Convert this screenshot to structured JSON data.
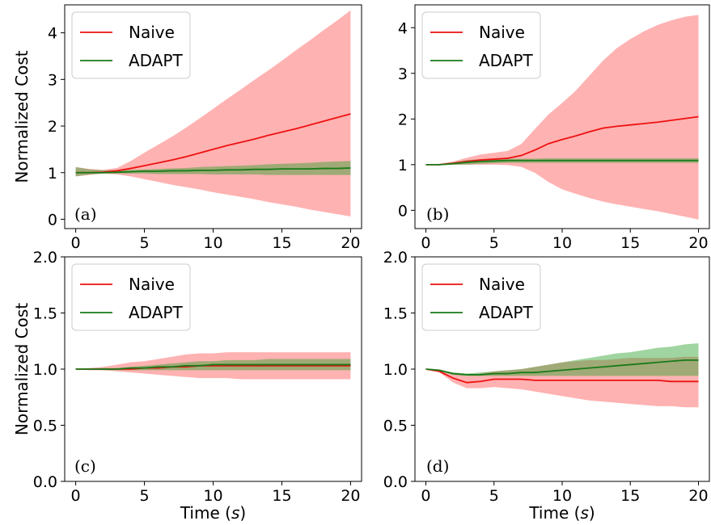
{
  "colors": {
    "naive_line": "#ee1111",
    "naive_band": "#ff6666",
    "adapt_line": "#1a7a1a",
    "adapt_band": "#2ca02c"
  },
  "chart_data": [
    {
      "panel": "(a)",
      "type": "line",
      "xlabel": "",
      "ylabel": "Normalized Cost",
      "xlim": [
        -0.8,
        20.8
      ],
      "ylim": [
        -0.2,
        4.6
      ],
      "xticks": [
        0,
        5,
        10,
        15,
        20
      ],
      "yticks": [
        0,
        1,
        2,
        3,
        4
      ],
      "legend": {
        "position": "top-left",
        "entries": [
          "Naive",
          "ADAPT"
        ]
      },
      "series": [
        {
          "name": "Naive",
          "x": [
            0,
            1,
            2,
            3,
            4,
            5,
            6,
            7,
            8,
            9,
            10,
            11,
            12,
            13,
            14,
            15,
            16,
            17,
            18,
            19,
            20
          ],
          "mean": [
            1.0,
            1.0,
            1.01,
            1.04,
            1.09,
            1.15,
            1.21,
            1.27,
            1.34,
            1.42,
            1.5,
            1.58,
            1.65,
            1.72,
            1.8,
            1.87,
            1.94,
            2.02,
            2.1,
            2.18,
            2.26
          ],
          "upper": [
            1.12,
            1.08,
            1.06,
            1.1,
            1.25,
            1.43,
            1.6,
            1.77,
            1.96,
            2.16,
            2.37,
            2.58,
            2.78,
            2.99,
            3.19,
            3.4,
            3.62,
            3.83,
            4.05,
            4.26,
            4.48
          ],
          "lower": [
            0.92,
            0.95,
            0.98,
            0.96,
            0.92,
            0.86,
            0.8,
            0.74,
            0.69,
            0.64,
            0.58,
            0.53,
            0.48,
            0.43,
            0.37,
            0.32,
            0.27,
            0.21,
            0.16,
            0.11,
            0.06
          ]
        },
        {
          "name": "ADAPT",
          "x": [
            0,
            1,
            2,
            3,
            4,
            5,
            6,
            7,
            8,
            9,
            10,
            11,
            12,
            13,
            14,
            15,
            16,
            17,
            18,
            19,
            20
          ],
          "mean": [
            1.0,
            1.0,
            1.0,
            1.01,
            1.02,
            1.03,
            1.03,
            1.04,
            1.04,
            1.05,
            1.05,
            1.06,
            1.06,
            1.07,
            1.07,
            1.08,
            1.08,
            1.08,
            1.09,
            1.09,
            1.1
          ],
          "upper": [
            1.12,
            1.07,
            1.05,
            1.05,
            1.06,
            1.07,
            1.08,
            1.09,
            1.1,
            1.12,
            1.13,
            1.14,
            1.15,
            1.16,
            1.18,
            1.19,
            1.2,
            1.21,
            1.23,
            1.24,
            1.25
          ],
          "lower": [
            0.92,
            0.96,
            0.98,
            0.98,
            0.98,
            0.98,
            0.97,
            0.97,
            0.97,
            0.97,
            0.96,
            0.96,
            0.96,
            0.96,
            0.95,
            0.95,
            0.95,
            0.95,
            0.95,
            0.95,
            0.95
          ]
        }
      ]
    },
    {
      "panel": "(b)",
      "type": "line",
      "xlabel": "",
      "ylabel": "",
      "xlim": [
        -0.8,
        20.8
      ],
      "ylim": [
        -0.4,
        4.5
      ],
      "xticks": [
        0,
        5,
        10,
        15,
        20
      ],
      "yticks": [
        0,
        1,
        2,
        3,
        4
      ],
      "legend": {
        "position": "top-left",
        "entries": [
          "Naive",
          "ADAPT"
        ]
      },
      "series": [
        {
          "name": "Naive",
          "x": [
            0,
            1,
            2,
            3,
            4,
            5,
            6,
            7,
            8,
            9,
            10,
            11,
            12,
            13,
            14,
            15,
            16,
            17,
            18,
            19,
            20
          ],
          "mean": [
            1.0,
            1.0,
            1.03,
            1.07,
            1.1,
            1.12,
            1.14,
            1.2,
            1.32,
            1.46,
            1.55,
            1.63,
            1.72,
            1.8,
            1.84,
            1.87,
            1.9,
            1.93,
            1.97,
            2.01,
            2.05
          ],
          "upper": [
            1.0,
            1.02,
            1.07,
            1.15,
            1.22,
            1.26,
            1.3,
            1.45,
            1.78,
            2.1,
            2.35,
            2.62,
            2.95,
            3.28,
            3.55,
            3.75,
            3.92,
            4.06,
            4.16,
            4.24,
            4.28
          ],
          "lower": [
            1.0,
            0.99,
            1.0,
            1.0,
            1.0,
            1.0,
            0.99,
            0.95,
            0.82,
            0.62,
            0.46,
            0.36,
            0.27,
            0.19,
            0.13,
            0.08,
            0.03,
            -0.02,
            -0.08,
            -0.14,
            -0.2
          ]
        },
        {
          "name": "ADAPT",
          "x": [
            0,
            1,
            2,
            3,
            4,
            5,
            6,
            7,
            8,
            9,
            10,
            11,
            12,
            13,
            14,
            15,
            16,
            17,
            18,
            19,
            20
          ],
          "mean": [
            1.0,
            1.0,
            1.02,
            1.05,
            1.07,
            1.08,
            1.09,
            1.09,
            1.09,
            1.09,
            1.09,
            1.09,
            1.09,
            1.09,
            1.09,
            1.09,
            1.09,
            1.09,
            1.09,
            1.09,
            1.09
          ],
          "upper": [
            1.0,
            1.01,
            1.05,
            1.1,
            1.12,
            1.13,
            1.13,
            1.13,
            1.13,
            1.14,
            1.14,
            1.14,
            1.14,
            1.14,
            1.14,
            1.14,
            1.14,
            1.14,
            1.14,
            1.14,
            1.14
          ],
          "lower": [
            1.0,
            0.99,
            1.0,
            1.0,
            1.02,
            1.03,
            1.04,
            1.04,
            1.04,
            1.04,
            1.04,
            1.04,
            1.04,
            1.04,
            1.04,
            1.04,
            1.04,
            1.04,
            1.04,
            1.04,
            1.04
          ]
        }
      ]
    },
    {
      "panel": "(c)",
      "type": "line",
      "xlabel": "Time (s)",
      "ylabel": "Normalized Cost",
      "xlim": [
        -0.8,
        20.8
      ],
      "ylim": [
        0.0,
        2.0
      ],
      "xticks": [
        0,
        5,
        10,
        15,
        20
      ],
      "yticks": [
        0.0,
        0.5,
        1.0,
        1.5,
        2.0
      ],
      "legend": {
        "position": "top-left",
        "entries": [
          "Naive",
          "ADAPT"
        ]
      },
      "series": [
        {
          "name": "Naive",
          "x": [
            0,
            1,
            2,
            3,
            4,
            5,
            6,
            7,
            8,
            9,
            10,
            11,
            12,
            13,
            14,
            15,
            16,
            17,
            18,
            19,
            20
          ],
          "mean": [
            1.0,
            1.0,
            1.0,
            1.0,
            1.0,
            1.01,
            1.01,
            1.02,
            1.02,
            1.03,
            1.03,
            1.03,
            1.03,
            1.03,
            1.03,
            1.03,
            1.03,
            1.03,
            1.03,
            1.03,
            1.03
          ],
          "upper": [
            1.0,
            1.01,
            1.02,
            1.04,
            1.06,
            1.07,
            1.09,
            1.11,
            1.13,
            1.14,
            1.14,
            1.15,
            1.15,
            1.15,
            1.15,
            1.15,
            1.15,
            1.15,
            1.15,
            1.15,
            1.15
          ],
          "lower": [
            1.0,
            0.99,
            0.99,
            0.98,
            0.97,
            0.96,
            0.95,
            0.94,
            0.93,
            0.92,
            0.92,
            0.92,
            0.91,
            0.91,
            0.91,
            0.91,
            0.91,
            0.91,
            0.91,
            0.91,
            0.91
          ]
        },
        {
          "name": "ADAPT",
          "x": [
            0,
            1,
            2,
            3,
            4,
            5,
            6,
            7,
            8,
            9,
            10,
            11,
            12,
            13,
            14,
            15,
            16,
            17,
            18,
            19,
            20
          ],
          "mean": [
            1.0,
            1.0,
            1.0,
            1.0,
            1.01,
            1.01,
            1.02,
            1.02,
            1.03,
            1.03,
            1.04,
            1.04,
            1.04,
            1.04,
            1.04,
            1.04,
            1.04,
            1.04,
            1.04,
            1.04,
            1.04
          ],
          "upper": [
            1.0,
            1.0,
            1.01,
            1.01,
            1.02,
            1.03,
            1.04,
            1.05,
            1.06,
            1.07,
            1.07,
            1.08,
            1.08,
            1.08,
            1.09,
            1.09,
            1.09,
            1.09,
            1.09,
            1.09,
            1.09
          ],
          "lower": [
            1.0,
            1.0,
            0.99,
            0.99,
            0.99,
            0.99,
            0.99,
            0.99,
            0.99,
            0.99,
            0.99,
            0.99,
            0.99,
            0.99,
            0.99,
            0.99,
            0.99,
            0.99,
            0.99,
            0.99,
            0.99
          ]
        }
      ]
    },
    {
      "panel": "(d)",
      "type": "line",
      "xlabel": "Time (s)",
      "ylabel": "",
      "xlim": [
        -0.8,
        20.8
      ],
      "ylim": [
        0.0,
        2.0
      ],
      "xticks": [
        0,
        5,
        10,
        15,
        20
      ],
      "yticks": [
        0.0,
        0.5,
        1.0,
        1.5,
        2.0
      ],
      "legend": {
        "position": "top-left",
        "entries": [
          "Naive",
          "ADAPT"
        ]
      },
      "series": [
        {
          "name": "Naive",
          "x": [
            0,
            1,
            2,
            3,
            4,
            5,
            6,
            7,
            8,
            9,
            10,
            11,
            12,
            13,
            14,
            15,
            16,
            17,
            18,
            19,
            20
          ],
          "mean": [
            1.0,
            0.98,
            0.92,
            0.88,
            0.89,
            0.91,
            0.91,
            0.91,
            0.9,
            0.9,
            0.9,
            0.9,
            0.9,
            0.9,
            0.9,
            0.9,
            0.9,
            0.9,
            0.89,
            0.89,
            0.89
          ],
          "upper": [
            1.0,
            0.99,
            0.96,
            0.94,
            0.96,
            0.98,
            0.99,
            1.0,
            1.02,
            1.04,
            1.06,
            1.07,
            1.08,
            1.08,
            1.09,
            1.1,
            1.1,
            1.1,
            1.1,
            1.11,
            1.11
          ],
          "lower": [
            1.0,
            0.97,
            0.88,
            0.83,
            0.83,
            0.84,
            0.83,
            0.82,
            0.8,
            0.78,
            0.76,
            0.74,
            0.72,
            0.71,
            0.7,
            0.69,
            0.68,
            0.67,
            0.67,
            0.66,
            0.66
          ]
        },
        {
          "name": "ADAPT",
          "x": [
            0,
            1,
            2,
            3,
            4,
            5,
            6,
            7,
            8,
            9,
            10,
            11,
            12,
            13,
            14,
            15,
            16,
            17,
            18,
            19,
            20
          ],
          "mean": [
            1.0,
            0.99,
            0.96,
            0.95,
            0.95,
            0.96,
            0.96,
            0.97,
            0.97,
            0.98,
            0.99,
            1.0,
            1.01,
            1.02,
            1.03,
            1.04,
            1.05,
            1.06,
            1.07,
            1.08,
            1.08
          ],
          "upper": [
            1.0,
            0.99,
            0.97,
            0.96,
            0.97,
            0.98,
            0.99,
            1.0,
            1.02,
            1.04,
            1.06,
            1.08,
            1.1,
            1.12,
            1.14,
            1.15,
            1.17,
            1.19,
            1.2,
            1.22,
            1.23
          ],
          "lower": [
            1.0,
            0.98,
            0.95,
            0.94,
            0.94,
            0.94,
            0.94,
            0.94,
            0.94,
            0.94,
            0.94,
            0.94,
            0.94,
            0.94,
            0.94,
            0.94,
            0.94,
            0.94,
            0.94,
            0.94,
            0.94
          ]
        }
      ]
    }
  ]
}
